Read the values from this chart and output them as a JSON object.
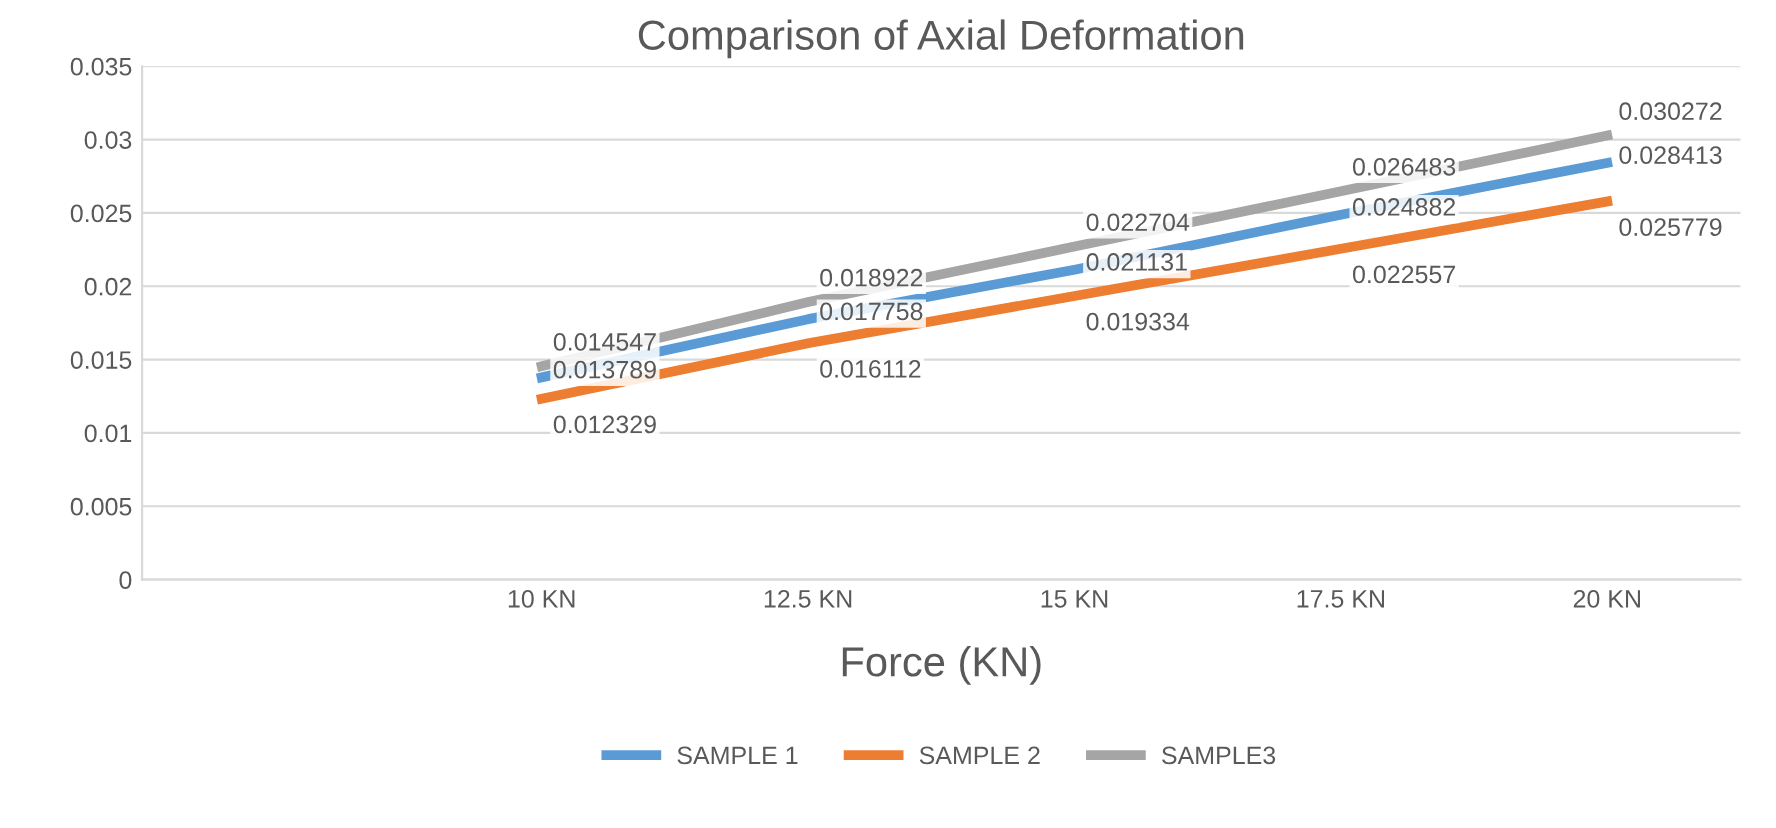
{
  "chart_data": {
    "type": "line",
    "title": "Comparison of Axial Deformation",
    "xlabel": "Force (KN)",
    "categories": [
      null,
      "10 KN",
      "12.5 KN",
      "15 KN",
      "17.5 KN",
      "20 KN"
    ],
    "series": [
      {
        "name": "SAMPLE 1",
        "color": "#5b9bd5",
        "values": [
          null,
          0.013789,
          0.017758,
          0.021131,
          0.024882,
          0.028413
        ]
      },
      {
        "name": "SAMPLE 2",
        "color": "#ed7d31",
        "values": [
          null,
          0.012329,
          0.016112,
          0.019334,
          0.022557,
          0.025779
        ]
      },
      {
        "name": "SAMPLE3",
        "color": "#a5a5a5",
        "values": [
          null,
          0.014547,
          0.018922,
          0.022704,
          0.026483,
          0.030272
        ]
      }
    ],
    "ylim": [
      0,
      0.035
    ],
    "yticks": [
      0,
      0.005,
      0.01,
      0.015,
      0.02,
      0.025,
      0.03,
      0.035
    ],
    "grid": "y",
    "legend": "bottom",
    "data_labels": true,
    "marker": "none",
    "line_style": "solid"
  }
}
